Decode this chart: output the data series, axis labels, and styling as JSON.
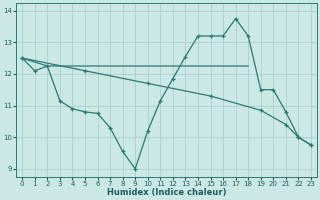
{
  "xlabel": "Humidex (Indice chaleur)",
  "bg_color": "#cce8e5",
  "line_color": "#2a7a70",
  "grid_color": "#aad0cc",
  "xlim": [
    -0.5,
    23.5
  ],
  "ylim": [
    8.75,
    14.25
  ],
  "yticks": [
    9,
    10,
    11,
    12,
    13,
    14
  ],
  "xticks": [
    0,
    1,
    2,
    3,
    4,
    5,
    6,
    7,
    8,
    9,
    10,
    11,
    12,
    13,
    14,
    15,
    16,
    17,
    18,
    19,
    20,
    21,
    22,
    23
  ],
  "line1_x": [
    0,
    1,
    2,
    3,
    4,
    5,
    6,
    7,
    8,
    9,
    10,
    11,
    12,
    13,
    14,
    15,
    16,
    17,
    18,
    19,
    20,
    21,
    22,
    23
  ],
  "line1_y": [
    12.5,
    12.1,
    12.25,
    11.15,
    10.9,
    10.8,
    10.75,
    10.3,
    9.55,
    9.0,
    10.2,
    11.15,
    11.85,
    12.55,
    13.2,
    13.2,
    13.2,
    13.75,
    13.2,
    11.5,
    11.5,
    10.8,
    10.0,
    9.75
  ],
  "line2_x": [
    0,
    2,
    18
  ],
  "line2_y": [
    12.5,
    12.25,
    12.25
  ],
  "line3_x": [
    0,
    5,
    10,
    15,
    19,
    21,
    22,
    23
  ],
  "line3_y": [
    12.5,
    12.1,
    11.7,
    11.3,
    10.85,
    10.4,
    10.0,
    9.75
  ]
}
